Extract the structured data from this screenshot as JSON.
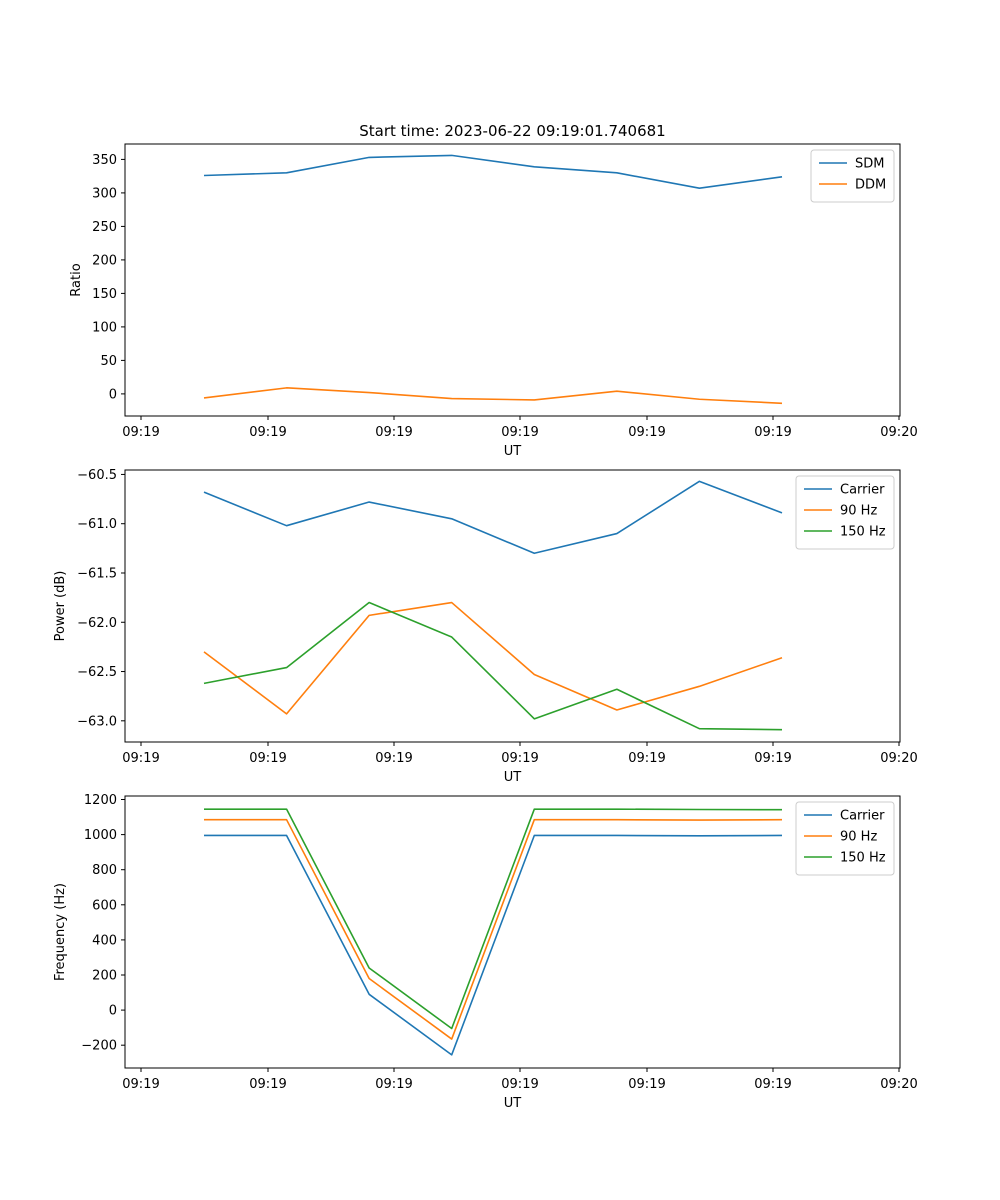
{
  "title": "Start time: 2023-06-22 09:19:01.740681",
  "colors": {
    "blue": "#1f77b4",
    "orange": "#ff7f0e",
    "green": "#2ca02c"
  },
  "chart_data": [
    {
      "type": "line",
      "xlabel": "UT",
      "ylabel": "Ratio",
      "xlim": [
        -0.72,
        8.28
      ],
      "ylim": [
        -33,
        373
      ],
      "yticks": [
        0,
        50,
        100,
        150,
        200,
        250,
        300,
        350
      ],
      "xtick_labels": [
        "09:19",
        "09:19",
        "09:19",
        "09:19",
        "09:19",
        "09:19",
        "09:19",
        "09:20"
      ],
      "x": [
        0,
        1,
        2,
        3,
        4,
        5,
        6,
        7
      ],
      "legend": "top-right",
      "series": [
        {
          "name": "SDM",
          "color": "#1f77b4",
          "values": [
            326,
            330,
            353,
            356,
            339,
            330,
            307,
            324
          ]
        },
        {
          "name": "DDM",
          "color": "#ff7f0e",
          "values": [
            -6,
            9,
            2,
            -7,
            -9,
            4,
            -8,
            -14
          ]
        }
      ]
    },
    {
      "type": "line",
      "xlabel": "UT",
      "ylabel": "Power (dB)",
      "xlim": [
        -0.72,
        8.28
      ],
      "ylim": [
        -63.215,
        -60.455
      ],
      "yticks": [
        -63.0,
        -62.5,
        -62.0,
        -61.5,
        -61.0,
        -60.5
      ],
      "xtick_labels": [
        "09:19",
        "09:19",
        "09:19",
        "09:19",
        "09:19",
        "09:19",
        "09:19",
        "09:20"
      ],
      "x": [
        0,
        1,
        2,
        3,
        4,
        5,
        6,
        7
      ],
      "legend": "top-right",
      "series": [
        {
          "name": "Carrier",
          "color": "#1f77b4",
          "values": [
            -60.68,
            -61.02,
            -60.78,
            -60.95,
            -61.3,
            -61.1,
            -60.57,
            -60.89
          ]
        },
        {
          "name": "90 Hz",
          "color": "#ff7f0e",
          "values": [
            -62.3,
            -62.93,
            -61.93,
            -61.8,
            -62.53,
            -62.89,
            -62.65,
            -62.36
          ]
        },
        {
          "name": "150 Hz",
          "color": "#2ca02c",
          "values": [
            -62.62,
            -62.46,
            -61.8,
            -62.15,
            -62.98,
            -62.68,
            -63.08,
            -63.09
          ]
        }
      ]
    },
    {
      "type": "line",
      "xlabel": "UT",
      "ylabel": "Frequency (Hz)",
      "xlim": [
        -0.72,
        8.28
      ],
      "ylim": [
        -330,
        1220
      ],
      "yticks": [
        -200,
        0,
        200,
        400,
        600,
        800,
        1000,
        1200
      ],
      "xtick_labels": [
        "09:19",
        "09:19",
        "09:19",
        "09:19",
        "09:19",
        "09:19",
        "09:19",
        "09:20"
      ],
      "x": [
        0,
        1,
        2,
        3,
        4,
        5,
        6,
        7
      ],
      "legend": "top-right",
      "series": [
        {
          "name": "Carrier",
          "color": "#1f77b4",
          "values": [
            995,
            995,
            90,
            -255,
            995,
            995,
            993,
            995
          ]
        },
        {
          "name": "90 Hz",
          "color": "#ff7f0e",
          "values": [
            1085,
            1085,
            180,
            -165,
            1085,
            1085,
            1083,
            1085
          ]
        },
        {
          "name": "150 Hz",
          "color": "#2ca02c",
          "values": [
            1145,
            1145,
            240,
            -105,
            1145,
            1145,
            1143,
            1142
          ]
        }
      ]
    }
  ]
}
